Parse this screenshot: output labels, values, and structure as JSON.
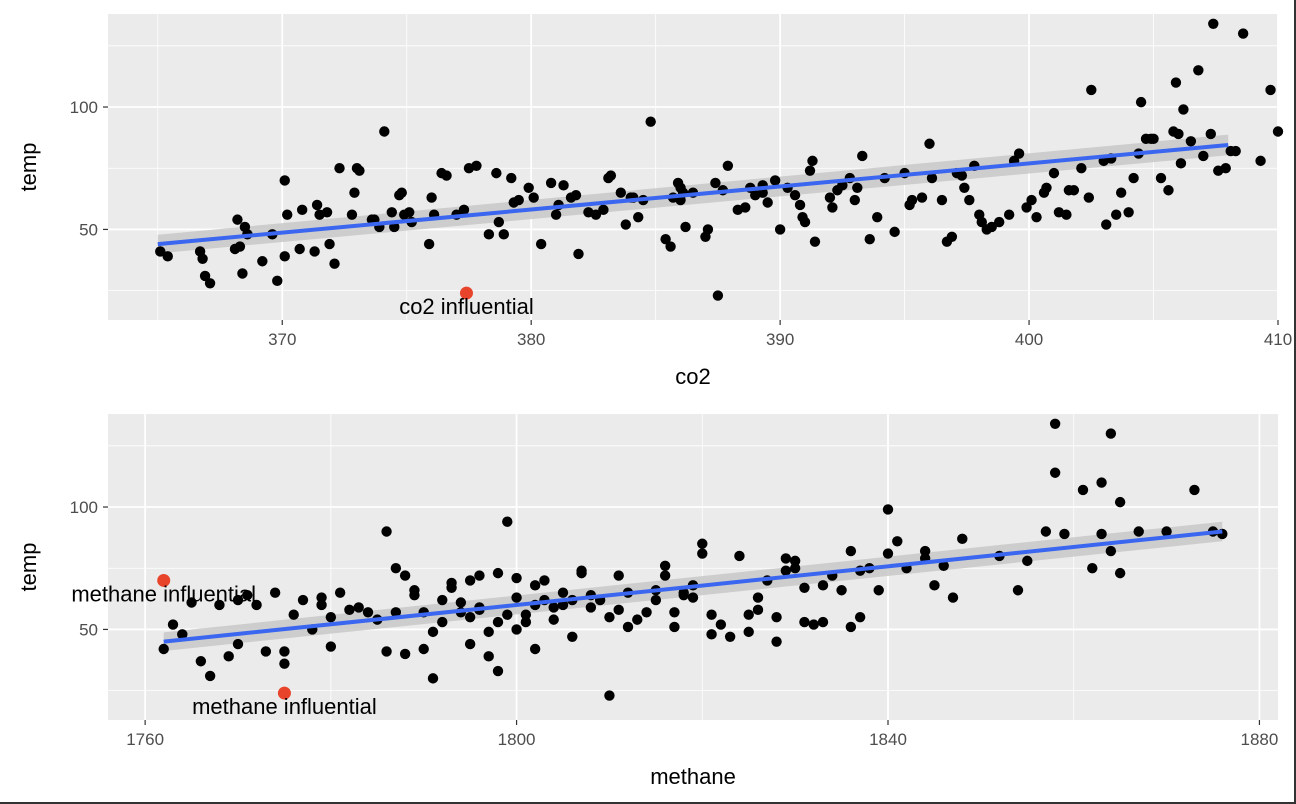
{
  "colors": {
    "panel": "#ebebeb",
    "grid": "#ffffff",
    "point": "#000000",
    "highlight": "#e8442b",
    "fit": "#3a66f0",
    "ribbon": "#c8c8c8"
  },
  "chart_data": [
    {
      "type": "scatter",
      "title": "",
      "xlabel": "co2",
      "ylabel": "temp",
      "xlim": [
        363,
        410
      ],
      "ylim": [
        13,
        138
      ],
      "xticks": [
        370,
        380,
        390,
        400,
        410
      ],
      "yticks": [
        50,
        100
      ],
      "grid": true,
      "legend": "none",
      "fit": {
        "method": "lm",
        "x": [
          365,
          408
        ],
        "y": [
          44,
          84.5
        ],
        "ci_halfwidth": [
          3.8,
          4.2
        ]
      },
      "points": [
        [
          365.1,
          41
        ],
        [
          365.4,
          39
        ],
        [
          366.7,
          41
        ],
        [
          366.8,
          38
        ],
        [
          366.9,
          31
        ],
        [
          367.1,
          28
        ],
        [
          368.1,
          42
        ],
        [
          368.2,
          54
        ],
        [
          368.3,
          43
        ],
        [
          368.4,
          32
        ],
        [
          368.5,
          51
        ],
        [
          368.6,
          48
        ],
        [
          369.2,
          37
        ],
        [
          369.6,
          48
        ],
        [
          369.8,
          29
        ],
        [
          370.1,
          39
        ],
        [
          370.2,
          56
        ],
        [
          370.1,
          70
        ],
        [
          370.7,
          42
        ],
        [
          370.8,
          58
        ],
        [
          371.3,
          41
        ],
        [
          371.4,
          60
        ],
        [
          371.5,
          56
        ],
        [
          371.8,
          57
        ],
        [
          371.9,
          44
        ],
        [
          372.1,
          36
        ],
        [
          372.3,
          75
        ],
        [
          372.8,
          56
        ],
        [
          372.9,
          65
        ],
        [
          373.0,
          75
        ],
        [
          373.1,
          74
        ],
        [
          373.6,
          54
        ],
        [
          373.7,
          54
        ],
        [
          373.9,
          51
        ],
        [
          374.1,
          90
        ],
        [
          374.4,
          57
        ],
        [
          374.5,
          51
        ],
        [
          374.7,
          64
        ],
        [
          374.8,
          65
        ],
        [
          374.9,
          56
        ],
        [
          375.1,
          57
        ],
        [
          375.2,
          53
        ],
        [
          375.9,
          44
        ],
        [
          376.0,
          63
        ],
        [
          376.1,
          56
        ],
        [
          376.4,
          73
        ],
        [
          376.6,
          72
        ],
        [
          377.0,
          56
        ],
        [
          377.3,
          58
        ],
        [
          377.5,
          75
        ],
        [
          377.8,
          76
        ],
        [
          378.3,
          48
        ],
        [
          378.6,
          73
        ],
        [
          378.7,
          53
        ],
        [
          378.9,
          48
        ],
        [
          379.2,
          71
        ],
        [
          379.3,
          61
        ],
        [
          379.5,
          62
        ],
        [
          379.9,
          67
        ],
        [
          380.1,
          63
        ],
        [
          380.4,
          44
        ],
        [
          380.8,
          69
        ],
        [
          381.0,
          56
        ],
        [
          381.1,
          60
        ],
        [
          381.3,
          68
        ],
        [
          381.6,
          63
        ],
        [
          381.8,
          64
        ],
        [
          381.9,
          40
        ],
        [
          382.3,
          57
        ],
        [
          382.6,
          56
        ],
        [
          382.9,
          58
        ],
        [
          383.1,
          71
        ],
        [
          383.2,
          72
        ],
        [
          383.6,
          65
        ],
        [
          383.8,
          52
        ],
        [
          384.0,
          63
        ],
        [
          384.1,
          63
        ],
        [
          384.3,
          55
        ],
        [
          384.5,
          62
        ],
        [
          384.8,
          94
        ],
        [
          385.4,
          46
        ],
        [
          385.6,
          43
        ],
        [
          385.7,
          63
        ],
        [
          385.9,
          69
        ],
        [
          386.0,
          67
        ],
        [
          386.0,
          62
        ],
        [
          386.1,
          65
        ],
        [
          386.2,
          51
        ],
        [
          386.5,
          65
        ],
        [
          387.0,
          47
        ],
        [
          387.1,
          50
        ],
        [
          387.4,
          69
        ],
        [
          387.5,
          23
        ],
        [
          387.7,
          66
        ],
        [
          387.9,
          76
        ],
        [
          388.3,
          58
        ],
        [
          388.6,
          59
        ],
        [
          388.8,
          67
        ],
        [
          389.0,
          64
        ],
        [
          389.3,
          68
        ],
        [
          389.3,
          65
        ],
        [
          389.5,
          61
        ],
        [
          389.8,
          70
        ],
        [
          390.0,
          50
        ],
        [
          390.3,
          67
        ],
        [
          390.6,
          64
        ],
        [
          390.8,
          60
        ],
        [
          390.9,
          55
        ],
        [
          391.0,
          53
        ],
        [
          391.2,
          74
        ],
        [
          391.3,
          78
        ],
        [
          391.4,
          45
        ],
        [
          392.0,
          63
        ],
        [
          392.1,
          59
        ],
        [
          392.3,
          66
        ],
        [
          392.5,
          68
        ],
        [
          392.8,
          71
        ],
        [
          393.0,
          62
        ],
        [
          393.1,
          67
        ],
        [
          393.3,
          80
        ],
        [
          393.6,
          46
        ],
        [
          393.9,
          55
        ],
        [
          394.2,
          71
        ],
        [
          394.6,
          49
        ],
        [
          395.0,
          73
        ],
        [
          395.2,
          60
        ],
        [
          395.3,
          62
        ],
        [
          395.7,
          63
        ],
        [
          396.0,
          85
        ],
        [
          396.1,
          71
        ],
        [
          396.5,
          62
        ],
        [
          396.7,
          45
        ],
        [
          396.9,
          47
        ],
        [
          397.1,
          73
        ],
        [
          397.3,
          72
        ],
        [
          397.4,
          67
        ],
        [
          397.6,
          62
        ],
        [
          397.8,
          76
        ],
        [
          398.0,
          56
        ],
        [
          398.1,
          53
        ],
        [
          398.3,
          50
        ],
        [
          398.5,
          51
        ],
        [
          398.8,
          53
        ],
        [
          399.2,
          56
        ],
        [
          399.4,
          78
        ],
        [
          399.6,
          81
        ],
        [
          399.9,
          59
        ],
        [
          400.1,
          62
        ],
        [
          400.3,
          55
        ],
        [
          400.6,
          65
        ],
        [
          400.7,
          67
        ],
        [
          401.0,
          73
        ],
        [
          401.2,
          57
        ],
        [
          401.5,
          56
        ],
        [
          401.6,
          66
        ],
        [
          401.8,
          66
        ],
        [
          402.1,
          75
        ],
        [
          402.4,
          63
        ],
        [
          402.5,
          107
        ],
        [
          403.0,
          78
        ],
        [
          403.1,
          52
        ],
        [
          403.3,
          79
        ],
        [
          403.5,
          56
        ],
        [
          403.7,
          65
        ],
        [
          404.0,
          57
        ],
        [
          404.2,
          71
        ],
        [
          404.4,
          81
        ],
        [
          404.5,
          102
        ],
        [
          404.7,
          87
        ],
        [
          404.9,
          87
        ],
        [
          405.0,
          87
        ],
        [
          405.3,
          71
        ],
        [
          405.6,
          66
        ],
        [
          405.8,
          90
        ],
        [
          405.9,
          110
        ],
        [
          406.0,
          89
        ],
        [
          406.1,
          77
        ],
        [
          406.2,
          99
        ],
        [
          406.5,
          86
        ],
        [
          406.8,
          115
        ],
        [
          407.0,
          80
        ],
        [
          407.3,
          89
        ],
        [
          407.4,
          134
        ],
        [
          407.6,
          74
        ],
        [
          407.9,
          75
        ],
        [
          408.1,
          82
        ],
        [
          408.3,
          82
        ],
        [
          408.6,
          130
        ],
        [
          409.3,
          78
        ],
        [
          409.7,
          107
        ],
        [
          410.0,
          90
        ]
      ],
      "highlighted": [
        {
          "x": 377.4,
          "y": 24,
          "label": "co2 influential"
        }
      ]
    },
    {
      "type": "scatter",
      "title": "",
      "xlabel": "methane",
      "ylabel": "temp",
      "xlim": [
        1756,
        1882
      ],
      "ylim": [
        13,
        138
      ],
      "xticks": [
        1760,
        1800,
        1840,
        1880
      ],
      "yticks": [
        50,
        100
      ],
      "grid": true,
      "legend": "none",
      "fit": {
        "method": "lm",
        "x": [
          1762,
          1876
        ],
        "y": [
          45,
          90
        ],
        "ci_halfwidth": [
          3.8,
          4.0
        ]
      },
      "points": [
        [
          1762,
          42
        ],
        [
          1763,
          52
        ],
        [
          1764,
          48
        ],
        [
          1765,
          61
        ],
        [
          1766,
          37
        ],
        [
          1767,
          31
        ],
        [
          1768,
          60
        ],
        [
          1769,
          39
        ],
        [
          1770,
          44
        ],
        [
          1770,
          62
        ],
        [
          1771,
          64
        ],
        [
          1772,
          60
        ],
        [
          1773,
          41
        ],
        [
          1774,
          65
        ],
        [
          1775,
          36
        ],
        [
          1775,
          41
        ],
        [
          1776,
          56
        ],
        [
          1777,
          62
        ],
        [
          1778,
          50
        ],
        [
          1779,
          60
        ],
        [
          1779,
          63
        ],
        [
          1780,
          43
        ],
        [
          1780,
          55
        ],
        [
          1781,
          65
        ],
        [
          1782,
          58
        ],
        [
          1783,
          59
        ],
        [
          1784,
          57
        ],
        [
          1785,
          54
        ],
        [
          1786,
          90
        ],
        [
          1786,
          41
        ],
        [
          1787,
          75
        ],
        [
          1787,
          57
        ],
        [
          1788,
          40
        ],
        [
          1788,
          72
        ],
        [
          1789,
          66
        ],
        [
          1789,
          64
        ],
        [
          1790,
          42
        ],
        [
          1790,
          57
        ],
        [
          1791,
          49
        ],
        [
          1791,
          30
        ],
        [
          1792,
          53
        ],
        [
          1792,
          62
        ],
        [
          1793,
          67
        ],
        [
          1793,
          69
        ],
        [
          1794,
          57
        ],
        [
          1794,
          61
        ],
        [
          1795,
          44
        ],
        [
          1795,
          70
        ],
        [
          1795,
          55
        ],
        [
          1796,
          72
        ],
        [
          1796,
          58
        ],
        [
          1796,
          59
        ],
        [
          1797,
          39
        ],
        [
          1797,
          49
        ],
        [
          1798,
          33
        ],
        [
          1798,
          73
        ],
        [
          1798,
          53
        ],
        [
          1799,
          94
        ],
        [
          1799,
          56
        ],
        [
          1800,
          71
        ],
        [
          1800,
          63
        ],
        [
          1800,
          50
        ],
        [
          1801,
          56
        ],
        [
          1801,
          53
        ],
        [
          1802,
          60
        ],
        [
          1802,
          68
        ],
        [
          1802,
          42
        ],
        [
          1803,
          62
        ],
        [
          1803,
          70
        ],
        [
          1804,
          54
        ],
        [
          1804,
          59
        ],
        [
          1805,
          60
        ],
        [
          1805,
          65
        ],
        [
          1806,
          47
        ],
        [
          1806,
          62
        ],
        [
          1807,
          74
        ],
        [
          1807,
          73
        ],
        [
          1808,
          59
        ],
        [
          1808,
          64
        ],
        [
          1809,
          62
        ],
        [
          1810,
          23
        ],
        [
          1810,
          55
        ],
        [
          1811,
          58
        ],
        [
          1811,
          72
        ],
        [
          1812,
          51
        ],
        [
          1812,
          65
        ],
        [
          1813,
          54
        ],
        [
          1814,
          57
        ],
        [
          1815,
          62
        ],
        [
          1815,
          66
        ],
        [
          1816,
          72
        ],
        [
          1816,
          76
        ],
        [
          1817,
          57
        ],
        [
          1817,
          51
        ],
        [
          1818,
          64
        ],
        [
          1818,
          65
        ],
        [
          1819,
          68
        ],
        [
          1819,
          63
        ],
        [
          1820,
          85
        ],
        [
          1820,
          81
        ],
        [
          1821,
          56
        ],
        [
          1821,
          48
        ],
        [
          1822,
          52
        ],
        [
          1823,
          47
        ],
        [
          1824,
          80
        ],
        [
          1825,
          56
        ],
        [
          1825,
          49
        ],
        [
          1826,
          58
        ],
        [
          1826,
          63
        ],
        [
          1827,
          70
        ],
        [
          1828,
          55
        ],
        [
          1828,
          45
        ],
        [
          1829,
          79
        ],
        [
          1829,
          74
        ],
        [
          1830,
          75
        ],
        [
          1830,
          78
        ],
        [
          1831,
          53
        ],
        [
          1831,
          67
        ],
        [
          1832,
          52
        ],
        [
          1833,
          68
        ],
        [
          1833,
          53
        ],
        [
          1834,
          72
        ],
        [
          1835,
          66
        ],
        [
          1836,
          82
        ],
        [
          1836,
          51
        ],
        [
          1837,
          74
        ],
        [
          1837,
          55
        ],
        [
          1838,
          75
        ],
        [
          1839,
          66
        ],
        [
          1840,
          81
        ],
        [
          1840,
          99
        ],
        [
          1841,
          86
        ],
        [
          1842,
          75
        ],
        [
          1844,
          82
        ],
        [
          1844,
          79
        ],
        [
          1845,
          68
        ],
        [
          1846,
          76
        ],
        [
          1847,
          63
        ],
        [
          1848,
          87
        ],
        [
          1852,
          80
        ],
        [
          1854,
          66
        ],
        [
          1855,
          78
        ],
        [
          1857,
          90
        ],
        [
          1858,
          114
        ],
        [
          1858,
          134
        ],
        [
          1859,
          89
        ],
        [
          1861,
          107
        ],
        [
          1862,
          75
        ],
        [
          1863,
          110
        ],
        [
          1863,
          89
        ],
        [
          1864,
          130
        ],
        [
          1864,
          82
        ],
        [
          1865,
          102
        ],
        [
          1865,
          73
        ],
        [
          1867,
          90
        ],
        [
          1870,
          90
        ],
        [
          1873,
          107
        ],
        [
          1875,
          90
        ],
        [
          1876,
          89
        ]
      ],
      "highlighted": [
        {
          "x": 1762,
          "y": 70,
          "label": "methane influential"
        },
        {
          "x": 1775,
          "y": 24,
          "label": "methane influential"
        }
      ]
    }
  ]
}
